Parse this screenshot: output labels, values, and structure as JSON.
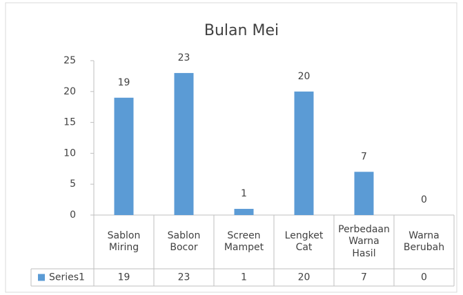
{
  "chart_data": {
    "type": "bar",
    "title": "Bulan Mei",
    "categories": [
      "Sablon Miring",
      "Sablon Bocor",
      "Screen Mampet",
      "Lengket Cat",
      "Perbedaan Warna Hasil",
      "Warna Berubah"
    ],
    "series": [
      {
        "name": "Series1",
        "color": "#5b9bd5",
        "values": [
          19,
          23,
          1,
          20,
          7,
          0
        ]
      }
    ],
    "ylim": [
      0,
      25
    ],
    "yticks": [
      0,
      5,
      10,
      15,
      20,
      25
    ],
    "grid": false,
    "data_table": true
  }
}
